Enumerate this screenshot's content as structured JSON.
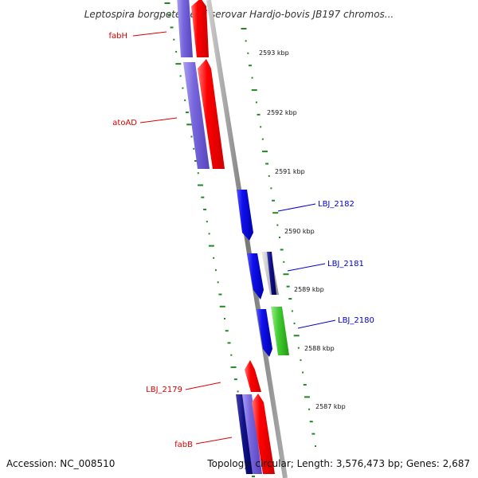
{
  "map": {
    "title": "Leptospira borgpetersenii serovar Hardjo-bovis JB197 chromos...",
    "accession": "Accession: NC_008510",
    "summary": "Topology: circular; Length: 3,576,473 bp; Genes: 2,687",
    "ticks": [
      "2593 kbp",
      "2592 kbp",
      "2591 kbp",
      "2590 kbp",
      "2589 kbp",
      "2588 kbp",
      "2587 kbp"
    ],
    "genes": [
      {
        "name": "fabH",
        "color": "#dd0000"
      },
      {
        "name": "atoAD",
        "color": "#dd0000"
      },
      {
        "name": "LBJ_2182",
        "color": "#0000cc"
      },
      {
        "name": "LBJ_2181",
        "color": "#0000cc"
      },
      {
        "name": "LBJ_2180",
        "color": "#0000cc"
      },
      {
        "name": "LBJ_2179",
        "color": "#dd0000"
      },
      {
        "name": "fabB",
        "color": "#dd0000"
      }
    ]
  },
  "colors": {
    "forward": "#ff0000",
    "reverse": "#1010ee",
    "cog_purple": "#7766dd",
    "cog_green": "#44cc33",
    "cog_navy": "#111188",
    "cog_gray": "#bbbbbb",
    "gc_skew": "#228822",
    "backbone": "#888888"
  }
}
